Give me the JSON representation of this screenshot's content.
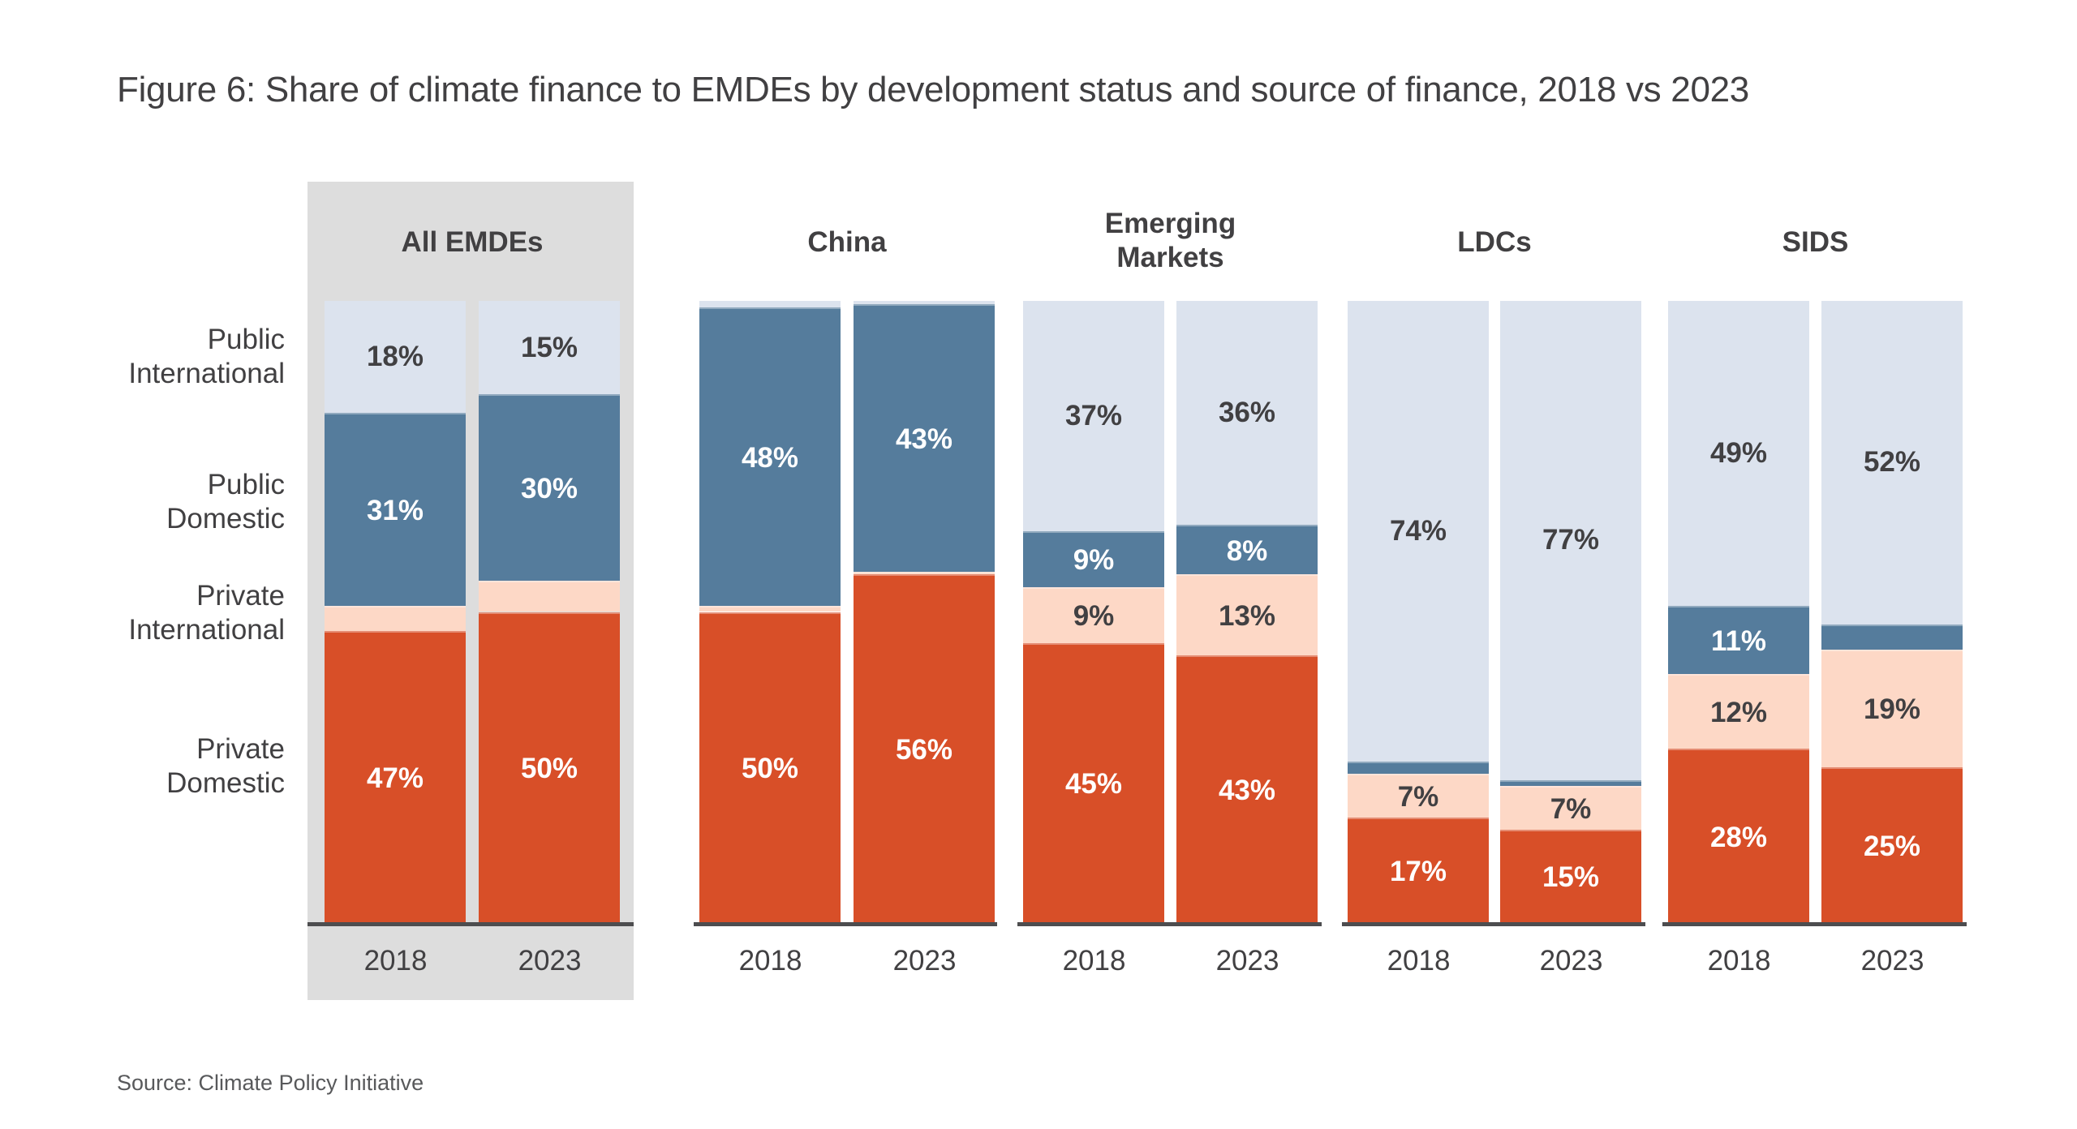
{
  "chart_data": {
    "type": "bar",
    "stacked": true,
    "normalized": true,
    "title": "Figure 6: Share of climate finance to EMDEs by development status and source of finance, 2018 vs 2023",
    "source": "Source: Climate Policy Initiative",
    "xlabel": "",
    "ylabel": "",
    "ylim": [
      0,
      100
    ],
    "grid": false,
    "highlighted_group": "All EMDEs",
    "series_order_bottom_to_top": [
      "Private Domestic",
      "Private International",
      "Public Domestic",
      "Public International"
    ],
    "series": [
      {
        "name": "Private Domestic",
        "label": "Private\nDomestic",
        "color": "#d84f28",
        "text_color": "#ffffff"
      },
      {
        "name": "Private International",
        "label": "Private\nInternational",
        "color": "#fdd8c6",
        "text_color": "#414042"
      },
      {
        "name": "Public Domestic",
        "label": "Public\nDomestic",
        "color": "#557c9c",
        "text_color": "#ffffff"
      },
      {
        "name": "Public International",
        "label": "Public\nInternational",
        "color": "#dce3ee",
        "text_color": "#414042"
      }
    ],
    "groups": [
      {
        "name": "All EMDEs",
        "bars": [
          {
            "year": "2018",
            "values": [
              47,
              4,
              31,
              18
            ],
            "labels": [
              "47%",
              "",
              "31%",
              "18%"
            ]
          },
          {
            "year": "2023",
            "values": [
              50,
              5,
              30,
              15
            ],
            "labels": [
              "50%",
              "",
              "30%",
              "15%"
            ]
          }
        ]
      },
      {
        "name": "China",
        "bars": [
          {
            "year": "2018",
            "values": [
              50,
              1,
              48,
              1
            ],
            "labels": [
              "50%",
              "",
              "48%",
              ""
            ]
          },
          {
            "year": "2023",
            "values": [
              56,
              0.5,
              43,
              0.5
            ],
            "labels": [
              "56%",
              "",
              "43%",
              ""
            ]
          }
        ]
      },
      {
        "name": "Emerging Markets",
        "bars": [
          {
            "year": "2018",
            "values": [
              45,
              9,
              9,
              37
            ],
            "labels": [
              "45%",
              "9%",
              "9%",
              "37%"
            ]
          },
          {
            "year": "2023",
            "values": [
              43,
              13,
              8,
              36
            ],
            "labels": [
              "43%",
              "13%",
              "8%",
              "36%"
            ]
          }
        ]
      },
      {
        "name": "LDCs",
        "bars": [
          {
            "year": "2018",
            "values": [
              17,
              7,
              2,
              74
            ],
            "labels": [
              "17%",
              "7%",
              "",
              "74%"
            ]
          },
          {
            "year": "2023",
            "values": [
              15,
              7,
              1,
              77
            ],
            "labels": [
              "15%",
              "7%",
              "",
              "77%"
            ]
          }
        ]
      },
      {
        "name": "SIDS",
        "bars": [
          {
            "year": "2018",
            "values": [
              28,
              12,
              11,
              49
            ],
            "labels": [
              "28%",
              "12%",
              "11%",
              "49%"
            ]
          },
          {
            "year": "2023",
            "values": [
              25,
              19,
              4,
              52
            ],
            "labels": [
              "25%",
              "19%",
              "",
              "52%"
            ]
          }
        ]
      }
    ]
  },
  "group_titles": [
    "All EMDEs",
    "China",
    "Emerging\nMarkets",
    "LDCs",
    "SIDS"
  ],
  "row_labels": [
    "Public\nInternational",
    "Public\nDomestic",
    "Private\nInternational",
    "Private\nDomestic"
  ]
}
